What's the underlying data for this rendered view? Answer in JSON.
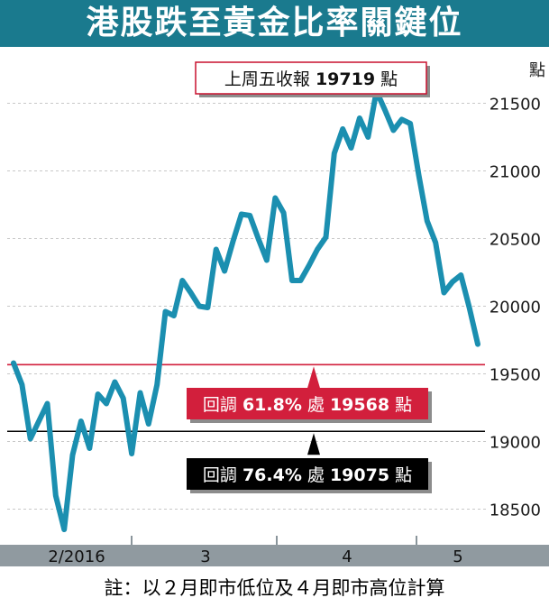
{
  "title": "港股跌至黃金比率關鍵位",
  "footnote": "註：以２月即市低位及４月即市高位計算",
  "colors": {
    "title_bg": "#1a7a8e",
    "line": "#1b8fb0",
    "axis_band": "#909aa0",
    "fib618": "#d21f3c",
    "fib764": "#000000"
  },
  "annotations": {
    "close": {
      "text_pre": "上周五收報 ",
      "value": "19719",
      "text_post": " 點"
    },
    "fib618": {
      "text_pre": "回調 ",
      "pct": "61.8%",
      "mid": " 處 ",
      "value": "19568",
      "text_post": " 點"
    },
    "fib764": {
      "text_pre": "回調 ",
      "pct": "76.4%",
      "mid": " 處 ",
      "value": "19075",
      "text_post": " 點"
    }
  },
  "chart_data": {
    "type": "line",
    "ylabel": "點",
    "ylim": [
      18250,
      21850
    ],
    "yticks": [
      18500,
      19000,
      19500,
      20000,
      20500,
      21000,
      21500
    ],
    "x_month_labels": [
      "2/2016",
      "3",
      "4",
      "5"
    ],
    "grid": true,
    "series": [
      {
        "values": [
          19580,
          19420,
          19020,
          19150,
          19280,
          18600,
          18350,
          18900,
          19150,
          18950,
          19350,
          19280,
          19440,
          19320,
          18910,
          19360,
          19130,
          19420,
          19960,
          19930,
          20190,
          20100,
          20000,
          19990,
          20420,
          20260,
          20480,
          20680,
          20670,
          20500,
          20340,
          20800,
          20690,
          20190,
          20190,
          20300,
          20420,
          20510,
          21130,
          21310,
          21170,
          21390,
          21250,
          21590,
          21450,
          21300,
          21380,
          21350,
          20970,
          20630,
          20470,
          20100,
          20180,
          20230,
          19990,
          19719
        ]
      }
    ],
    "reference_lines": [
      {
        "value": 19568,
        "label": "回調 61.8% 處 19568 點"
      },
      {
        "value": 19075,
        "label": "回調 76.4% 處 19075 點"
      }
    ]
  }
}
